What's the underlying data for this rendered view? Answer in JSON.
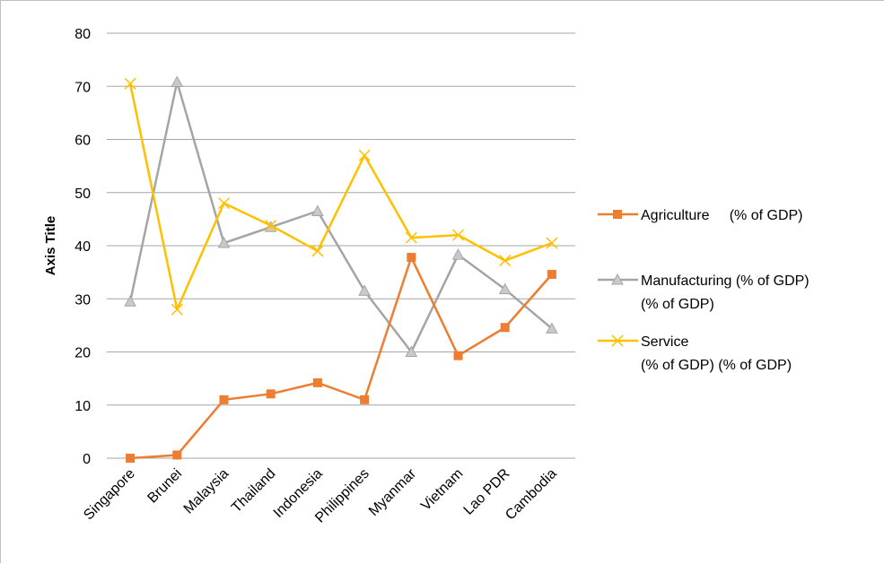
{
  "chart_data": {
    "type": "line",
    "title": "",
    "xlabel": "",
    "ylabel": "Axis Title",
    "ylim": [
      0,
      80
    ],
    "yticks": [
      0,
      10,
      20,
      30,
      40,
      50,
      60,
      70,
      80
    ],
    "grid": true,
    "legend_position": "right",
    "categories": [
      "Singapore",
      "Brunei",
      "Malaysia",
      "Thailand",
      "Indonesia",
      "Philippines",
      "Myanmar",
      "Vietnam",
      "Lao PDR",
      "Cambodia"
    ],
    "series": [
      {
        "name": "Agriculture     (% of GDP)",
        "legend_lines": [
          "Agriculture     (% of GDP)"
        ],
        "color": "#ED7D31",
        "marker": "square",
        "values": [
          0,
          0.6,
          11,
          12.1,
          14.2,
          11,
          37.8,
          19.3,
          24.6,
          34.6
        ]
      },
      {
        "name": "Manufacturing (% of GDP) (% of GDP)",
        "legend_lines": [
          "Manufacturing (% of GDP)",
          "(% of GDP)"
        ],
        "color": "#A5A5A5",
        "marker": "triangle",
        "values": [
          29.5,
          70.8,
          40.5,
          43.5,
          46.5,
          31.5,
          20,
          38.3,
          31.8,
          24.4
        ]
      },
      {
        "name": "Service (% of GDP) (% of GDP)",
        "legend_lines": [
          "Service",
          "(% of GDP) (% of GDP)"
        ],
        "color": "#FFC000",
        "marker": "x",
        "values": [
          70.5,
          28,
          48,
          43.8,
          39,
          57,
          41.5,
          42,
          37.2,
          40.5
        ]
      }
    ]
  }
}
